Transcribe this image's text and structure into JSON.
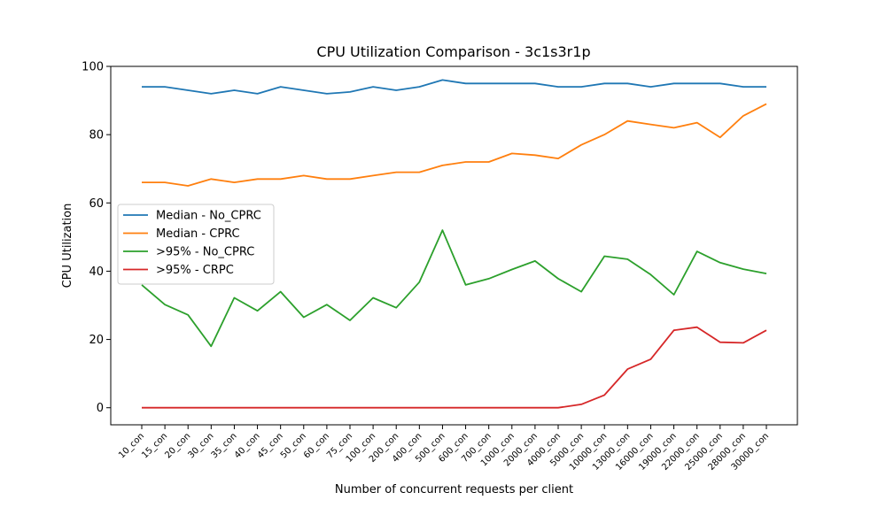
{
  "chart_data": {
    "type": "line",
    "title": "CPU Utilization Comparison - 3c1s3r1p",
    "xlabel": "Number of concurrent requests per client",
    "ylabel": "CPU Utilization",
    "ylim": [
      -5,
      100
    ],
    "yticks": [
      0,
      20,
      40,
      60,
      80,
      100
    ],
    "grid": false,
    "legend_position": "center-left",
    "categories": [
      "10_con",
      "15_con",
      "20_con",
      "30_con",
      "35_con",
      "40_con",
      "45_con",
      "50_con",
      "60_con",
      "75_con",
      "100_con",
      "200_con",
      "400_con",
      "500_con",
      "600_con",
      "700_con",
      "1000_con",
      "2000_con",
      "4000_con",
      "5000_con",
      "10000_con",
      "13000_con",
      "16000_con",
      "19000_con",
      "22000_con",
      "25000_con",
      "28000_con",
      "30000_con"
    ],
    "series": [
      {
        "name": "Median - No_CPRC",
        "color": "#1f77b4",
        "values": [
          94,
          94,
          93,
          92,
          93,
          92,
          94,
          93,
          92,
          92.5,
          94,
          93,
          94,
          96,
          95,
          95,
          95,
          95,
          94,
          94,
          95,
          95,
          94,
          95,
          95,
          95,
          94,
          94
        ]
      },
      {
        "name": "Median - CPRC",
        "color": "#ff7f0e",
        "values": [
          66,
          66,
          65,
          67,
          66,
          67,
          67,
          68,
          67,
          67,
          68,
          69,
          69,
          71,
          72,
          72,
          74.5,
          74,
          73,
          77,
          80,
          84,
          83,
          82,
          83.5,
          79.2,
          85.5,
          89
        ]
      },
      {
        "name": ">95% - No_CPRC",
        "color": "#2ca02c",
        "values": [
          36,
          30.2,
          27.2,
          18,
          32.2,
          28.4,
          34,
          26.5,
          30.2,
          25.6,
          32.2,
          29.3,
          36.8,
          52,
          36,
          37.8,
          40.5,
          43,
          37.8,
          34,
          44.4,
          43.5,
          39,
          33.1,
          45.8,
          42.5,
          40.6,
          39.3
        ]
      },
      {
        "name": ">95% - CRPC",
        "color": "#d62728",
        "values": [
          0,
          0,
          0,
          0,
          0,
          0,
          0,
          0,
          0,
          0,
          0,
          0,
          0,
          0,
          0,
          0,
          0,
          0,
          0,
          1,
          3.7,
          11.3,
          14.2,
          22.7,
          23.6,
          19.2,
          19,
          22.7
        ]
      }
    ]
  }
}
